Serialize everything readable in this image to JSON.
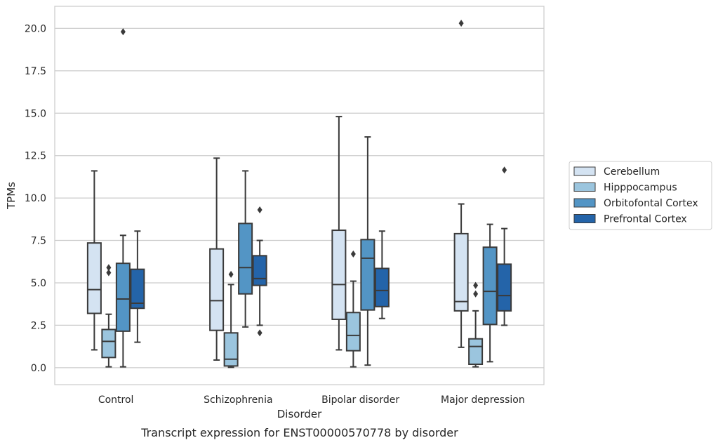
{
  "caption": "Transcript expression for ENST00000570778 by disorder",
  "chart_data": {
    "type": "box",
    "xlabel": "Disorder",
    "ylabel": "TPMs",
    "ylim": [
      -1.0,
      21.3
    ],
    "yticks": [
      0.0,
      2.5,
      5.0,
      7.5,
      10.0,
      12.5,
      15.0,
      17.5,
      20.0
    ],
    "ytick_labels": [
      "0.0",
      "2.5",
      "5.0",
      "7.5",
      "10.0",
      "12.5",
      "15.0",
      "17.5",
      "20.0"
    ],
    "grid": "horizontal",
    "legend_placement": "right",
    "categories": [
      "Control",
      "Schizophrenia",
      "Bipolar disorder",
      "Major depression"
    ],
    "series": [
      {
        "name": "Cerebellum",
        "color": "#d4e3f2",
        "boxes": [
          {
            "whisker_low": 1.05,
            "q1": 3.2,
            "median": 4.6,
            "q3": 7.35,
            "whisker_high": 11.6,
            "outliers": []
          },
          {
            "whisker_low": 0.45,
            "q1": 2.2,
            "median": 3.95,
            "q3": 7.0,
            "whisker_high": 12.35,
            "outliers": []
          },
          {
            "whisker_low": 1.05,
            "q1": 2.85,
            "median": 4.9,
            "q3": 8.1,
            "whisker_high": 14.8,
            "outliers": []
          },
          {
            "whisker_low": 1.2,
            "q1": 3.35,
            "median": 3.9,
            "q3": 7.9,
            "whisker_high": 9.65,
            "outliers": [
              20.3
            ]
          }
        ]
      },
      {
        "name": "Hipppocampus",
        "color": "#9bc5de",
        "boxes": [
          {
            "whisker_low": 0.05,
            "q1": 0.6,
            "median": 1.55,
            "q3": 2.25,
            "whisker_high": 3.15,
            "outliers": [
              5.6,
              5.9
            ]
          },
          {
            "whisker_low": 0.02,
            "q1": 0.1,
            "median": 0.5,
            "q3": 2.05,
            "whisker_high": 4.9,
            "outliers": [
              5.5
            ]
          },
          {
            "whisker_low": 0.05,
            "q1": 1.0,
            "median": 1.9,
            "q3": 3.25,
            "whisker_high": 5.1,
            "outliers": [
              6.7
            ]
          },
          {
            "whisker_low": 0.05,
            "q1": 0.2,
            "median": 1.25,
            "q3": 1.7,
            "whisker_high": 3.35,
            "outliers": [
              4.35,
              4.85
            ]
          }
        ]
      },
      {
        "name": "Orbitofontal Cortex",
        "color": "#5395c5",
        "boxes": [
          {
            "whisker_low": 0.05,
            "q1": 2.15,
            "median": 4.05,
            "q3": 6.15,
            "whisker_high": 7.8,
            "outliers": [
              19.8
            ]
          },
          {
            "whisker_low": 2.4,
            "q1": 4.35,
            "median": 5.9,
            "q3": 8.5,
            "whisker_high": 11.6,
            "outliers": []
          },
          {
            "whisker_low": 0.15,
            "q1": 3.4,
            "median": 6.45,
            "q3": 7.55,
            "whisker_high": 13.6,
            "outliers": []
          },
          {
            "whisker_low": 0.35,
            "q1": 2.55,
            "median": 4.5,
            "q3": 7.1,
            "whisker_high": 8.45,
            "outliers": []
          }
        ]
      },
      {
        "name": "Prefrontal Cortex",
        "color": "#2464a9",
        "boxes": [
          {
            "whisker_low": 1.5,
            "q1": 3.5,
            "median": 3.8,
            "q3": 5.8,
            "whisker_high": 8.05,
            "outliers": []
          },
          {
            "whisker_low": 2.5,
            "q1": 4.85,
            "median": 5.25,
            "q3": 6.6,
            "whisker_high": 7.5,
            "outliers": [
              2.05,
              9.3
            ]
          },
          {
            "whisker_low": 2.9,
            "q1": 3.6,
            "median": 4.55,
            "q3": 5.85,
            "whisker_high": 8.05,
            "outliers": []
          },
          {
            "whisker_low": 2.5,
            "q1": 3.35,
            "median": 4.25,
            "q3": 6.1,
            "whisker_high": 8.2,
            "outliers": [
              11.65
            ]
          }
        ]
      }
    ]
  }
}
